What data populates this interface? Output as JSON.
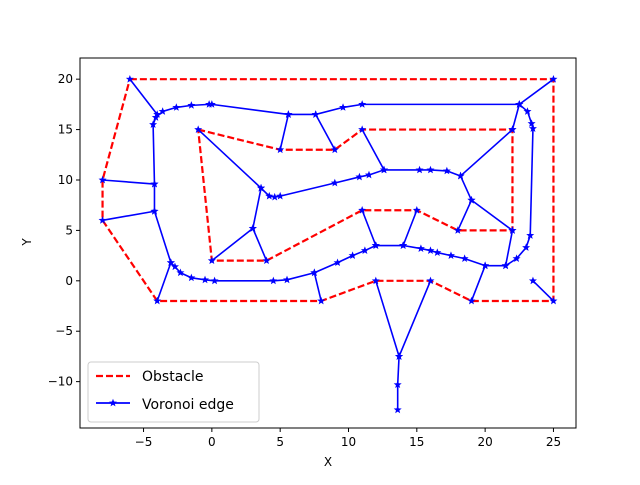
{
  "chart_data": {
    "type": "line",
    "title": "",
    "xlabel": "X",
    "ylabel": "Y",
    "xlim": [
      -9.65,
      26.65
    ],
    "ylim": [
      -14.6,
      22.1
    ],
    "xticks": [
      -5,
      0,
      5,
      10,
      15,
      20,
      25
    ],
    "yticks": [
      -10,
      -5,
      0,
      5,
      10,
      15,
      20
    ],
    "xtick_labels": [
      "−5",
      "0",
      "5",
      "10",
      "15",
      "20",
      "25"
    ],
    "ytick_labels": [
      "−10",
      "−5",
      "0",
      "5",
      "10",
      "15",
      "20"
    ],
    "grid": false,
    "legend": {
      "placement": "lower-left",
      "entries": [
        {
          "label": "Obstacle",
          "color": "#ff0000",
          "style": "dashed"
        },
        {
          "label": "Voronoi edge",
          "color": "#0000ff",
          "style": "solid-star-markers"
        }
      ]
    },
    "series": [
      {
        "name": "Obstacle",
        "color": "#ff0000",
        "polylines": [
          [
            [
              -6,
              20
            ],
            [
              25,
              20
            ],
            [
              25,
              -2
            ],
            [
              19,
              -2
            ],
            [
              16,
              0
            ],
            [
              12,
              0
            ],
            [
              8,
              -2
            ],
            [
              -4,
              -2
            ],
            [
              -8,
              6
            ],
            [
              -8,
              10
            ],
            [
              -6,
              20
            ]
          ],
          [
            [
              -1,
              15
            ],
            [
              5,
              13
            ],
            [
              9,
              13
            ],
            [
              11,
              15
            ],
            [
              22,
              15
            ],
            [
              22,
              5
            ],
            [
              18,
              5
            ],
            [
              15,
              7
            ],
            [
              11,
              7
            ],
            [
              4,
              2
            ],
            [
              0,
              2
            ],
            [
              -1,
              15
            ]
          ]
        ]
      },
      {
        "name": "Voronoi edge",
        "color": "#0000ff",
        "polylines": [
          [
            [
              -8,
              10
            ],
            [
              -4.2,
              9.6
            ],
            [
              -4.3,
              15.5
            ],
            [
              -4.1,
              16.2
            ],
            [
              -3.6,
              16.8
            ],
            [
              -2.6,
              17.2
            ],
            [
              -1.5,
              17.4
            ],
            [
              -0.2,
              17.5
            ],
            [
              0,
              17.5
            ],
            [
              5.6,
              16.5
            ],
            [
              7.6,
              16.5
            ],
            [
              9.6,
              17.2
            ],
            [
              11,
              17.5
            ],
            [
              22.5,
              17.5
            ],
            [
              23.1,
              16.8
            ],
            [
              23.4,
              15.6
            ],
            [
              23.5,
              15.1
            ],
            [
              23.3,
              4.5
            ],
            [
              23,
              3.3
            ],
            [
              22.3,
              2.2
            ],
            [
              21.5,
              1.5
            ],
            [
              20,
              1.5
            ],
            [
              18.5,
              2.2
            ],
            [
              17.5,
              2.5
            ],
            [
              16.5,
              2.8
            ],
            [
              16,
              3
            ],
            [
              15.3,
              3.2
            ],
            [
              14,
              3.5
            ],
            [
              12,
              3.5
            ],
            [
              11.2,
              3
            ],
            [
              10.3,
              2.5
            ],
            [
              9.2,
              1.8
            ],
            [
              7.5,
              0.8
            ],
            [
              5.5,
              0.1
            ],
            [
              4.5,
              0
            ],
            [
              0.2,
              0
            ],
            [
              -0.5,
              0.1
            ],
            [
              -1.5,
              0.3
            ],
            [
              -2.3,
              0.8
            ],
            [
              -2.7,
              1.4
            ],
            [
              -3,
              1.8
            ],
            [
              -4.2,
              6.9
            ],
            [
              -4.2,
              9.6
            ]
          ],
          [
            [
              -8,
              6
            ],
            [
              -4.2,
              6.9
            ]
          ],
          [
            [
              -4,
              -2
            ],
            [
              -3,
              1.8
            ]
          ],
          [
            [
              0,
              2
            ],
            [
              3,
              5.2
            ],
            [
              4,
              2
            ]
          ],
          [
            [
              -1,
              15
            ],
            [
              3.6,
              9.2
            ],
            [
              4.2,
              8.4
            ],
            [
              4.6,
              8.3
            ],
            [
              5,
              8.4
            ],
            [
              9,
              9.7
            ],
            [
              10.8,
              10.3
            ],
            [
              11.5,
              10.5
            ],
            [
              12.6,
              11
            ],
            [
              15.2,
              11
            ],
            [
              16,
              11
            ],
            [
              17.2,
              10.9
            ],
            [
              18.2,
              10.4
            ],
            [
              22,
              15
            ]
          ],
          [
            [
              3,
              5.2
            ],
            [
              3.6,
              9.2
            ]
          ],
          [
            [
              5,
              13
            ],
            [
              5.6,
              16.5
            ]
          ],
          [
            [
              9,
              13
            ],
            [
              7.6,
              16.5
            ]
          ],
          [
            [
              11,
              15
            ],
            [
              12.6,
              11
            ]
          ],
          [
            [
              18.2,
              10.4
            ],
            [
              19,
              8
            ],
            [
              22,
              5
            ]
          ],
          [
            [
              19,
              8
            ],
            [
              18,
              5
            ]
          ],
          [
            [
              19,
              -2
            ],
            [
              20,
              1.5
            ]
          ],
          [
            [
              22,
              15
            ],
            [
              22.5,
              17.5
            ]
          ],
          [
            [
              25,
              20
            ],
            [
              22.5,
              17.5
            ]
          ],
          [
            [
              22,
              5
            ],
            [
              21.5,
              1.5
            ]
          ],
          [
            [
              25,
              -2
            ],
            [
              23.5,
              0
            ]
          ],
          [
            [
              15,
              7
            ],
            [
              14,
              3.5
            ]
          ],
          [
            [
              11,
              7
            ],
            [
              12,
              3.5
            ]
          ],
          [
            [
              8,
              -2
            ],
            [
              7.5,
              0.8
            ]
          ],
          [
            [
              12,
              0
            ],
            [
              13.7,
              -7.5
            ],
            [
              16,
              0
            ]
          ],
          [
            [
              13.7,
              -7.5
            ],
            [
              13.6,
              -10.3
            ],
            [
              13.6,
              -12.8
            ]
          ],
          [
            [
              -6,
              20
            ],
            [
              -4,
              16.5
            ]
          ]
        ]
      }
    ]
  }
}
